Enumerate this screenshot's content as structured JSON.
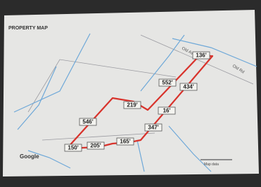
{
  "header": {
    "title": "PROPERTY MAP"
  },
  "streets": [
    "Old Ave",
    "Old Rd"
  ],
  "segments": [
    "136'",
    "552'",
    "434'",
    "219'",
    "16'",
    "347'",
    "546'",
    "150'",
    "205'",
    "165'"
  ],
  "footer": {
    "logo": "Google",
    "attribution": "Map data"
  }
}
